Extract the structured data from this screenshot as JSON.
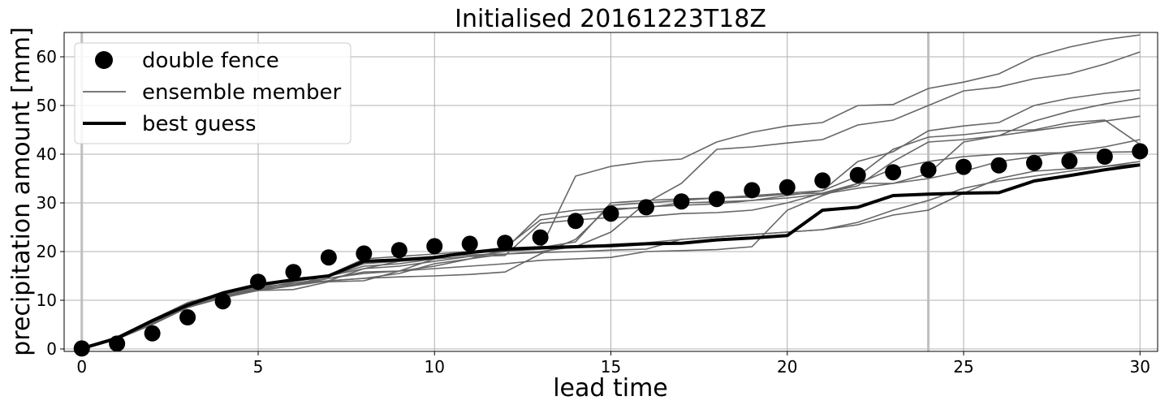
{
  "chart_data": {
    "type": "line",
    "title": "Initialised 20161223T18Z",
    "xlabel": "lead time",
    "ylabel": "precipitation amount [mm]",
    "xlim": [
      -0.5,
      30.5
    ],
    "ylim": [
      -0.5,
      65
    ],
    "xticks": [
      0,
      5,
      10,
      15,
      20,
      25,
      30
    ],
    "yticks": [
      0,
      10,
      20,
      30,
      40,
      50,
      60
    ],
    "grid": true,
    "legend_position": "top-left",
    "vertical_markers": [
      0,
      24
    ],
    "colors": {
      "double_fence": "#000000",
      "ensemble": "#666666",
      "best_guess": "#000000",
      "marker_line": "#bfbfbf",
      "grid": "#b0b0b0"
    },
    "legend": [
      {
        "key": "double_fence",
        "label": "double fence"
      },
      {
        "key": "ensemble",
        "label": "ensemble member"
      },
      {
        "key": "best_guess",
        "label": "best guess"
      }
    ],
    "x": [
      0,
      1,
      2,
      3,
      4,
      5,
      6,
      7,
      8,
      9,
      10,
      11,
      12,
      13,
      14,
      15,
      16,
      17,
      18,
      19,
      20,
      21,
      22,
      23,
      24,
      25,
      26,
      27,
      28,
      29,
      30
    ],
    "series": [
      {
        "name": "double fence",
        "kind": "points",
        "values": [
          0.1,
          1.1,
          3.2,
          6.5,
          9.8,
          13.8,
          15.8,
          18.8,
          19.6,
          20.3,
          21.1,
          21.6,
          21.8,
          22.9,
          26.3,
          27.8,
          29.1,
          30.3,
          30.8,
          32.6,
          33.2,
          34.6,
          35.7,
          36.3,
          36.8,
          37.4,
          37.7,
          38.2,
          38.6,
          39.5,
          40.6
        ]
      },
      {
        "name": "ensemble member",
        "kind": "ensemble",
        "members": [
          [
            0.2,
            2.5,
            6.0,
            9.5,
            11.5,
            12.8,
            14.0,
            15.0,
            16.5,
            17.0,
            18.0,
            19.0,
            20.0,
            20.5,
            35.5,
            37.5,
            38.5,
            39.0,
            42.5,
            44.5,
            45.8,
            46.5,
            50.0,
            50.2,
            53.5,
            54.8,
            56.5,
            60.0,
            62.0,
            63.5,
            64.5
          ],
          [
            0.2,
            2.2,
            5.5,
            9.0,
            11.0,
            12.5,
            13.5,
            14.5,
            15.5,
            16.0,
            17.0,
            18.5,
            19.5,
            20.0,
            21.0,
            24.0,
            30.0,
            34.0,
            41.0,
            41.5,
            42.3,
            43.0,
            46.0,
            47.0,
            50.0,
            53.0,
            53.8,
            55.5,
            56.5,
            58.5,
            61.0
          ],
          [
            0.2,
            2.0,
            5.2,
            8.5,
            10.8,
            12.3,
            13.0,
            14.0,
            14.5,
            14.8,
            15.0,
            15.3,
            15.8,
            19.5,
            22.5,
            29.5,
            30.0,
            30.5,
            31.0,
            31.5,
            32.0,
            32.5,
            38.5,
            40.5,
            44.8,
            45.8,
            46.5,
            50.0,
            51.5,
            52.5,
            53.2
          ],
          [
            0.2,
            2.3,
            5.8,
            9.0,
            11.2,
            12.0,
            12.2,
            13.8,
            14.0,
            16.0,
            18.5,
            20.0,
            20.8,
            26.5,
            27.5,
            28.5,
            29.2,
            29.5,
            29.8,
            30.5,
            31.0,
            31.8,
            33.0,
            34.0,
            36.0,
            42.5,
            43.8,
            46.8,
            48.8,
            50.3,
            51.5
          ],
          [
            0.2,
            2.1,
            5.5,
            8.8,
            10.5,
            12.2,
            13.8,
            15.0,
            17.5,
            18.0,
            18.5,
            19.0,
            19.2,
            25.8,
            26.5,
            27.0,
            27.2,
            27.8,
            28.0,
            28.5,
            30.0,
            32.0,
            33.5,
            38.5,
            42.5,
            43.0,
            43.8,
            44.8,
            45.8,
            46.8,
            47.8
          ],
          [
            0.2,
            2.2,
            5.6,
            9.0,
            11.0,
            12.7,
            14.5,
            15.0,
            17.0,
            17.5,
            18.5,
            20.0,
            20.5,
            20.8,
            22.0,
            30.0,
            30.5,
            30.8,
            31.0,
            31.2,
            31.8,
            32.0,
            34.0,
            34.0,
            35.0,
            36.5,
            38.5,
            39.5,
            40.5,
            41.5,
            43.0
          ],
          [
            0.2,
            2.4,
            6.0,
            9.5,
            11.5,
            12.8,
            13.2,
            14.0,
            14.5,
            15.5,
            17.5,
            18.5,
            20.5,
            27.5,
            28.5,
            28.8,
            29.0,
            30.0,
            30.2,
            30.5,
            31.5,
            32.5,
            35.5,
            41.0,
            43.5,
            44.0,
            44.8,
            45.0,
            46.5,
            47.0,
            42.0
          ],
          [
            0.2,
            2.1,
            5.4,
            8.6,
            10.8,
            12.0,
            13.0,
            14.5,
            15.8,
            16.0,
            16.5,
            17.0,
            17.5,
            18.2,
            18.5,
            18.8,
            20.0,
            20.2,
            20.4,
            21.0,
            28.5,
            31.5,
            34.0,
            37.0,
            38.5,
            39.5,
            40.0,
            40.2,
            40.3,
            40.4,
            40.5
          ],
          [
            0.2,
            2.0,
            5.0,
            8.5,
            10.5,
            12.0,
            13.0,
            15.2,
            18.5,
            19.0,
            19.5,
            20.0,
            20.2,
            20.5,
            20.8,
            21.5,
            21.8,
            22.5,
            23.0,
            23.5,
            24.0,
            24.5,
            25.5,
            27.5,
            28.5,
            32.0,
            35.0,
            36.5,
            37.0,
            37.5,
            38.0
          ],
          [
            0.2,
            2.3,
            5.8,
            9.0,
            11.0,
            12.6,
            13.5,
            14.0,
            16.5,
            18.0,
            19.0,
            19.3,
            19.5,
            19.8,
            20.0,
            20.3,
            20.5,
            22.5,
            23.0,
            23.5,
            24.0,
            24.5,
            26.0,
            28.5,
            30.5,
            33.0,
            34.5,
            35.5,
            36.5,
            37.5,
            38.5
          ]
        ]
      },
      {
        "name": "best guess",
        "kind": "line",
        "values": [
          0.1,
          2.2,
          5.8,
          9.0,
          11.5,
          13.2,
          14.2,
          15.0,
          18.0,
          18.3,
          18.8,
          19.8,
          20.5,
          20.8,
          21.0,
          21.2,
          21.6,
          21.7,
          22.4,
          22.8,
          23.3,
          28.5,
          29.1,
          31.5,
          31.8,
          32.0,
          32.1,
          34.5,
          35.6,
          36.8,
          37.8
        ]
      }
    ]
  }
}
